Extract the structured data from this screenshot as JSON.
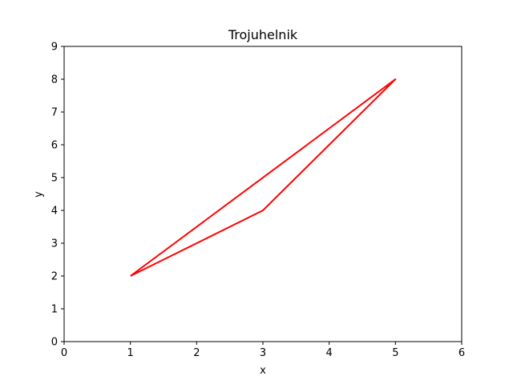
{
  "chart_data": {
    "type": "line",
    "title": "Trojuhelnik",
    "xlabel": "x",
    "ylabel": "y",
    "xlim": [
      0,
      6
    ],
    "ylim": [
      0,
      9
    ],
    "xticks": [
      0,
      1,
      2,
      3,
      4,
      5,
      6
    ],
    "yticks": [
      0,
      1,
      2,
      3,
      4,
      5,
      6,
      7,
      8,
      9
    ],
    "grid": false,
    "series": [
      {
        "x": [
          1,
          3,
          5,
          1
        ],
        "y": [
          2,
          4,
          8,
          2
        ],
        "color": "#ff0000"
      }
    ]
  }
}
